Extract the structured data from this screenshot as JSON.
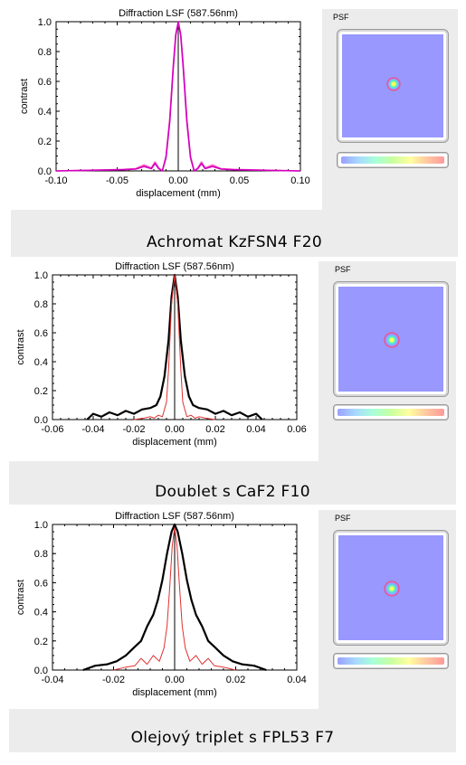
{
  "colors": {
    "background": "#ffffff",
    "band": "#ececec",
    "psf_field": "#9898ff",
    "curve_magenta": "#e000c0",
    "curve_pink": "#ff5fbf",
    "curve_black": "#000000",
    "curve_red": "#e03030"
  },
  "panels": [
    {
      "caption": "Achromat KzFSN4 F20",
      "psf": {
        "label": "PSF",
        "colorbar": "rainbow"
      },
      "chart_data": {
        "type": "line",
        "title": "Diffraction LSF (587.56nm)",
        "xlabel": "displacement (mm)",
        "ylabel": "contrast",
        "xlim": [
          -0.1,
          0.1
        ],
        "ylim": [
          0,
          1.0
        ],
        "xticks": [
          "-0.10",
          "-0.05",
          "0.00",
          "0.05",
          "0.10"
        ],
        "yticks": [
          "0.0",
          "0.2",
          "0.4",
          "0.6",
          "0.8",
          "1.0"
        ],
        "grid": false,
        "series": [
          {
            "color": "#ff5fbf",
            "width": 1.6,
            "x": [
              -0.1,
              -0.07,
              -0.045,
              -0.035,
              -0.028,
              -0.022,
              -0.019,
              -0.016,
              -0.013,
              -0.01,
              -0.007,
              -0.004,
              -0.002,
              0,
              0.002,
              0.004,
              0.007,
              0.01,
              0.013,
              0.016,
              0.019,
              0.022,
              0.028,
              0.035,
              0.045,
              0.07,
              0.1
            ],
            "y": [
              0.0,
              0.005,
              0.01,
              0.015,
              0.04,
              0.02,
              0.06,
              0.02,
              0.0,
              0.1,
              0.35,
              0.72,
              0.92,
              0.99,
              0.92,
              0.72,
              0.35,
              0.1,
              0.0,
              0.02,
              0.06,
              0.02,
              0.04,
              0.015,
              0.01,
              0.005,
              0.0
            ]
          },
          {
            "color": "#d000c0",
            "width": 1.6,
            "x": [
              -0.1,
              -0.07,
              -0.045,
              -0.035,
              -0.028,
              -0.022,
              -0.019,
              -0.016,
              -0.013,
              -0.01,
              -0.007,
              -0.004,
              -0.002,
              0,
              0.002,
              0.004,
              0.007,
              0.01,
              0.013,
              0.016,
              0.019,
              0.022,
              0.028,
              0.035,
              0.045,
              0.07,
              0.1
            ],
            "y": [
              0.0,
              0.004,
              0.008,
              0.012,
              0.03,
              0.015,
              0.05,
              0.015,
              0.0,
              0.09,
              0.33,
              0.7,
              0.91,
              1.0,
              0.91,
              0.7,
              0.33,
              0.09,
              0.0,
              0.015,
              0.05,
              0.015,
              0.03,
              0.012,
              0.008,
              0.004,
              0.0
            ]
          }
        ]
      }
    },
    {
      "caption": "Doublet s CaF2 F10",
      "psf": {
        "label": "PSF",
        "colorbar": "rainbow"
      },
      "chart_data": {
        "type": "line",
        "title": "Diffraction LSF (587.56nm)",
        "xlabel": "displacement (mm)",
        "ylabel": "contrast",
        "xlim": [
          -0.06,
          0.06
        ],
        "ylim": [
          0,
          1.0
        ],
        "xticks": [
          "-0.06",
          "-0.04",
          "-0.02",
          "0.00",
          "0.02",
          "0.04",
          "0.06"
        ],
        "yticks": [
          "0.0",
          "0.2",
          "0.4",
          "0.6",
          "0.8",
          "1.0"
        ],
        "grid": false,
        "series": [
          {
            "color": "#000000",
            "width": 2.2,
            "x": [
              -0.043,
              -0.04,
              -0.036,
              -0.032,
              -0.028,
              -0.024,
              -0.02,
              -0.016,
              -0.012,
              -0.009,
              -0.007,
              -0.005,
              -0.003,
              -0.0015,
              0,
              0.0015,
              0.003,
              0.005,
              0.007,
              0.009,
              0.012,
              0.016,
              0.02,
              0.024,
              0.028,
              0.032,
              0.036,
              0.04,
              0.043
            ],
            "y": [
              0.0,
              0.04,
              0.02,
              0.05,
              0.03,
              0.06,
              0.04,
              0.07,
              0.08,
              0.1,
              0.16,
              0.3,
              0.55,
              0.85,
              1.0,
              0.85,
              0.55,
              0.3,
              0.16,
              0.1,
              0.08,
              0.07,
              0.04,
              0.06,
              0.03,
              0.05,
              0.02,
              0.04,
              0.0
            ]
          },
          {
            "color": "#e03030",
            "width": 1.0,
            "x": [
              -0.02,
              -0.015,
              -0.012,
              -0.01,
              -0.008,
              -0.006,
              -0.004,
              -0.003,
              -0.0015,
              0,
              0.0015,
              0.003,
              0.004,
              0.006,
              0.008,
              0.01,
              0.012,
              0.015,
              0.02
            ],
            "y": [
              0.0,
              0.01,
              0.02,
              0.01,
              0.03,
              0.02,
              0.12,
              0.35,
              0.8,
              1.0,
              0.8,
              0.35,
              0.12,
              0.02,
              0.03,
              0.01,
              0.02,
              0.01,
              0.0
            ]
          }
        ]
      }
    },
    {
      "caption": "Olejový triplet s FPL53 F7",
      "psf": {
        "label": "PSF",
        "colorbar": "rainbow"
      },
      "chart_data": {
        "type": "line",
        "title": "Diffraction LSF (587.56nm)",
        "xlabel": "displacement (mm)",
        "ylabel": "contrast",
        "xlim": [
          -0.04,
          0.04
        ],
        "ylim": [
          0,
          1.0
        ],
        "xticks": [
          "-0.04",
          "-0.02",
          "0.00",
          "0.02",
          "0.04"
        ],
        "yticks": [
          "0.0",
          "0.2",
          "0.4",
          "0.6",
          "0.8",
          "1.0"
        ],
        "grid": false,
        "series": [
          {
            "color": "#000000",
            "width": 2.2,
            "x": [
              -0.03,
              -0.026,
              -0.022,
              -0.019,
              -0.016,
              -0.013,
              -0.011,
              -0.009,
              -0.007,
              -0.0055,
              -0.004,
              -0.0025,
              -0.001,
              0,
              0.001,
              0.0025,
              0.004,
              0.0055,
              0.007,
              0.009,
              0.011,
              0.013,
              0.016,
              0.019,
              0.022,
              0.026,
              0.03
            ],
            "y": [
              0.0,
              0.03,
              0.04,
              0.06,
              0.1,
              0.16,
              0.2,
              0.3,
              0.38,
              0.48,
              0.62,
              0.8,
              0.95,
              1.0,
              0.95,
              0.8,
              0.62,
              0.48,
              0.38,
              0.3,
              0.2,
              0.16,
              0.1,
              0.06,
              0.04,
              0.03,
              0.0
            ]
          },
          {
            "color": "#e03030",
            "width": 1.0,
            "x": [
              -0.02,
              -0.016,
              -0.013,
              -0.011,
              -0.009,
              -0.007,
              -0.005,
              -0.0035,
              -0.0025,
              -0.0015,
              -0.0008,
              0,
              0.0008,
              0.0015,
              0.0025,
              0.0035,
              0.005,
              0.007,
              0.009,
              0.011,
              0.013,
              0.016,
              0.02
            ],
            "y": [
              0.0,
              0.02,
              0.03,
              0.08,
              0.04,
              0.1,
              0.06,
              0.15,
              0.3,
              0.6,
              0.85,
              0.98,
              0.85,
              0.6,
              0.3,
              0.15,
              0.06,
              0.1,
              0.04,
              0.08,
              0.03,
              0.02,
              0.0
            ]
          }
        ]
      }
    }
  ]
}
